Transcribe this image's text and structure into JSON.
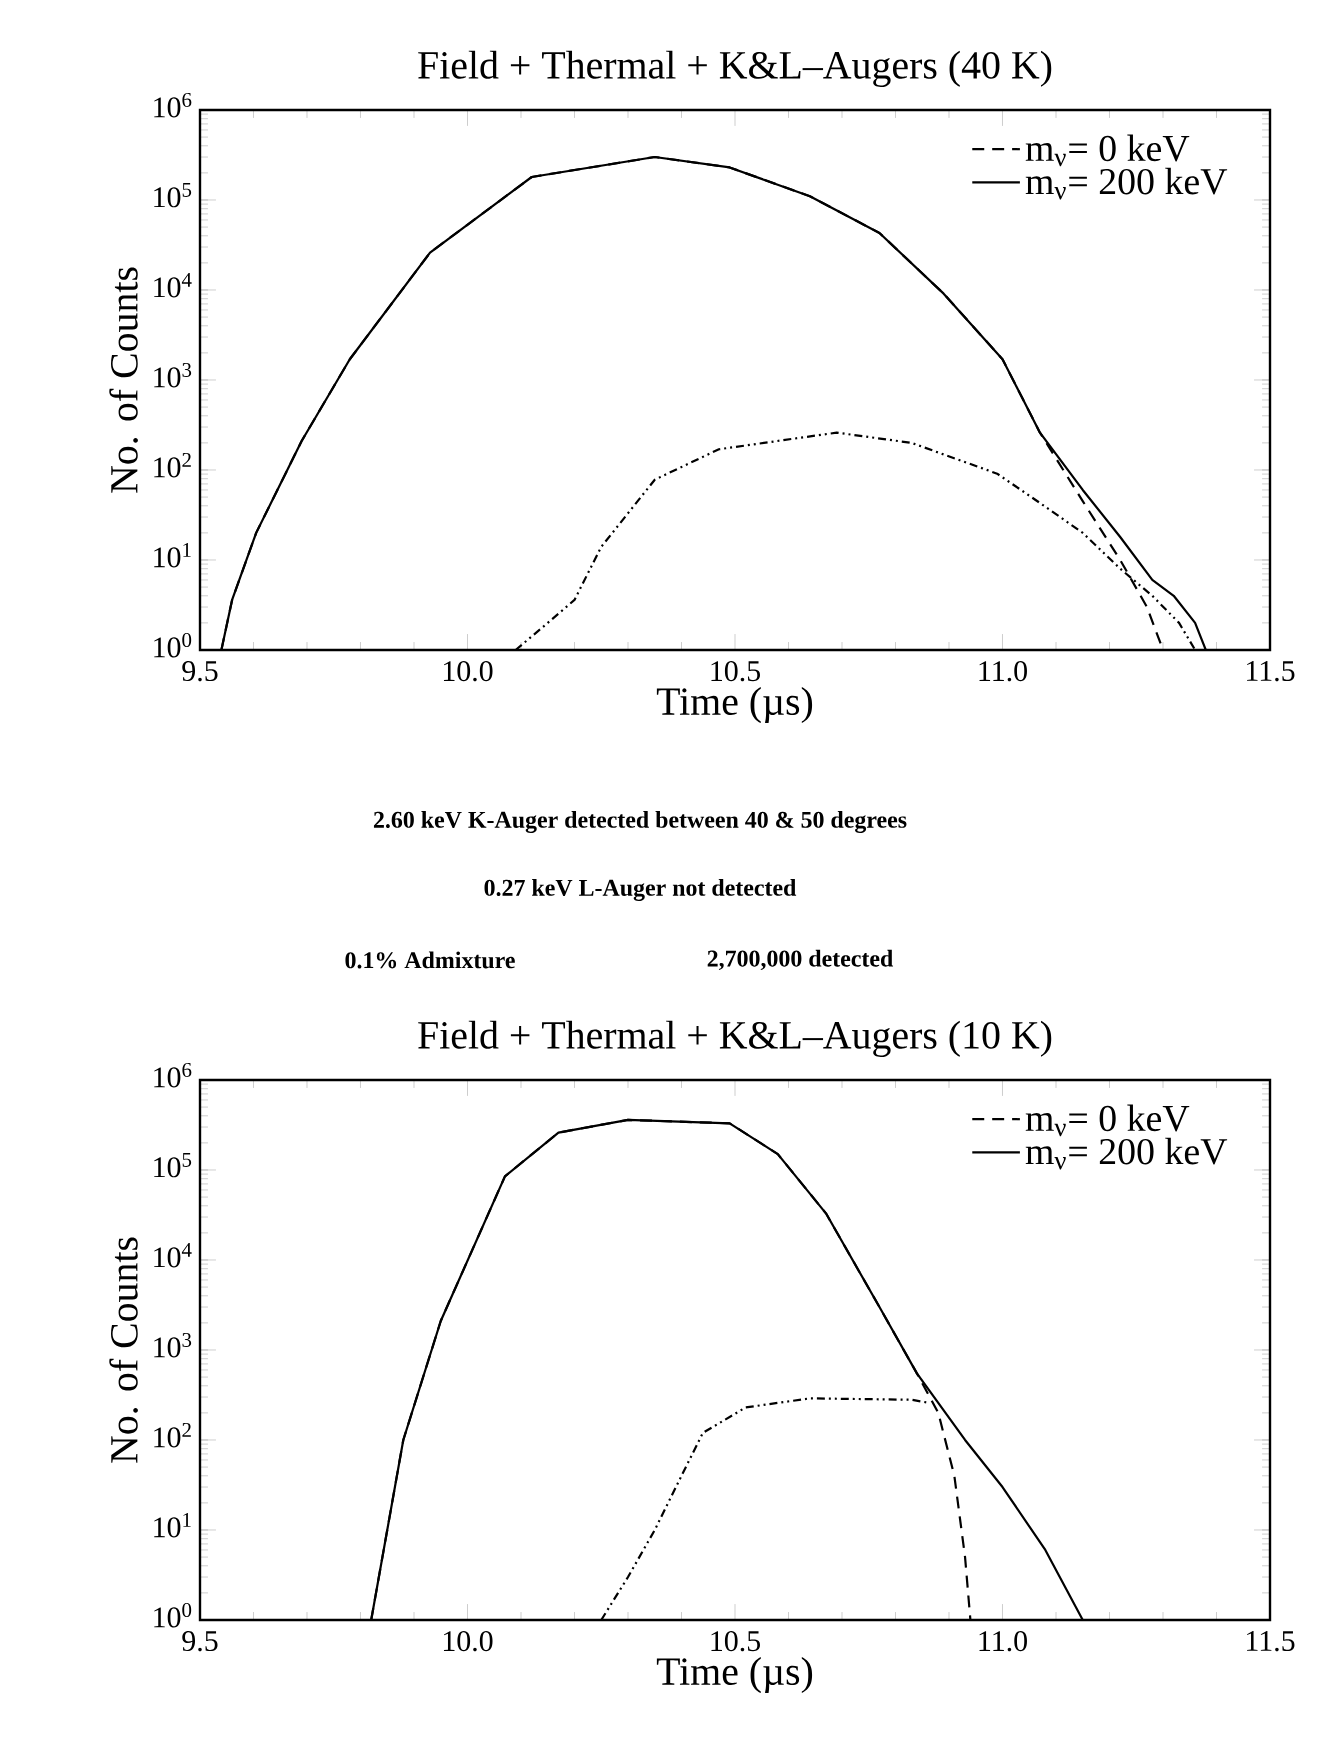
{
  "chart_data": [
    {
      "type": "line",
      "title": "Field + Thermal + K&L–Augers (40 K)",
      "xlabel": "Time (µs)",
      "ylabel": "No. of Counts",
      "log": "y",
      "xlim": [
        9.5,
        11.5
      ],
      "ylim": [
        1,
        1000000
      ],
      "xticks": [
        {
          "value": 9.5,
          "label": "9.5"
        },
        {
          "value": 10,
          "label": "10.0"
        },
        {
          "value": 10.5,
          "label": "10.5"
        },
        {
          "value": 11,
          "label": "11.0"
        },
        {
          "value": 11.5,
          "label": "11.5"
        }
      ],
      "yticks": [
        {
          "value": 1,
          "label": "10$^{0}$"
        },
        {
          "value": 10,
          "label": "10$^{1}$"
        },
        {
          "value": 100,
          "label": "10$^{2}$"
        },
        {
          "value": 1000,
          "label": "10$^{3}$"
        },
        {
          "value": 10000,
          "label": "10$^{4}$"
        },
        {
          "value": 100000,
          "label": "10$^{5}$"
        },
        {
          "value": 1000000,
          "label": "10$^{6}$"
        }
      ],
      "legend": "top right",
      "series": [
        {
          "name": "m$_{ν}$= 0 keV",
          "color": "#000000",
          "line_style": "dashed",
          "x": [
            9.54,
            9.56,
            9.605,
            9.69,
            9.78,
            9.93,
            10.12,
            10.35,
            10.49,
            10.64,
            10.77,
            10.89,
            11.0,
            11.07,
            11.15,
            11.22,
            11.27,
            11.3
          ],
          "values": [
            1,
            3.6,
            20,
            210,
            1700,
            26000,
            180000,
            300000,
            230000,
            110000,
            43000,
            9100,
            1700,
            260,
            45,
            10,
            3,
            1
          ]
        },
        {
          "name": "m$_{ν}$= 200 keV",
          "color": "#000000",
          "line_style": "solid",
          "x": [
            9.54,
            9.56,
            9.605,
            9.69,
            9.78,
            9.93,
            10.12,
            10.35,
            10.49,
            10.64,
            10.77,
            10.89,
            11.0,
            11.07,
            11.15,
            11.22,
            11.28,
            11.32,
            11.36,
            11.38
          ],
          "values": [
            1,
            3.6,
            20,
            210,
            1700,
            26000,
            180000,
            300000,
            230000,
            110000,
            43000,
            9100,
            1700,
            260,
            60,
            18,
            6,
            4,
            2,
            1
          ]
        },
        {
          "color": "#000000",
          "line_style": "dashdotted",
          "x": [
            10.09,
            10.15,
            10.2,
            10.25,
            10.35,
            10.47,
            10.69,
            10.83,
            10.99,
            11.07,
            11.15,
            11.22,
            11.28,
            11.33,
            11.36
          ],
          "values": [
            1,
            2,
            3.6,
            14,
            78,
            170,
            260,
            200,
            91,
            43,
            20,
            8,
            4,
            2,
            1
          ]
        }
      ],
      "annotations": [
        "2.60 keV K-Auger detected between 40 & 50 degrees",
        "0.27 keV L-Auger not detected",
        "0.1% Admixture",
        "2,700,000 detected"
      ]
    },
    {
      "type": "line",
      "title": "Field + Thermal + K&L–Augers (10 K)",
      "xlabel": "Time (µs)",
      "ylabel": "No. of Counts",
      "log": "y",
      "xlim": [
        9.5,
        11.5
      ],
      "ylim": [
        1,
        1000000
      ],
      "xticks": [
        {
          "value": 9.5,
          "label": "9.5"
        },
        {
          "value": 10,
          "label": "10.0"
        },
        {
          "value": 10.5,
          "label": "10.5"
        },
        {
          "value": 11,
          "label": "11.0"
        },
        {
          "value": 11.5,
          "label": "11.5"
        }
      ],
      "yticks": [
        {
          "value": 1,
          "label": "10$^{0}$"
        },
        {
          "value": 10,
          "label": "10$^{1}$"
        },
        {
          "value": 100,
          "label": "10$^{2}$"
        },
        {
          "value": 1000,
          "label": "10$^{3}$"
        },
        {
          "value": 10000,
          "label": "10$^{4}$"
        },
        {
          "value": 100000,
          "label": "10$^{5}$"
        },
        {
          "value": 1000000,
          "label": "10$^{6}$"
        }
      ],
      "legend": "top right",
      "series": [
        {
          "name": "m$_{ν}$= 0 keV",
          "color": "#000000",
          "line_style": "dashed",
          "x": [
            9.82,
            9.88,
            9.95,
            10.07,
            10.17,
            10.3,
            10.49,
            10.58,
            10.67,
            10.77,
            10.84,
            10.88,
            10.91,
            10.93,
            10.94
          ],
          "values": [
            1,
            100,
            2100,
            85000,
            260000,
            360000,
            330000,
            150000,
            33000,
            3000,
            550,
            200,
            40,
            5,
            1
          ]
        },
        {
          "name": "m$_{ν}$= 200 keV",
          "color": "#000000",
          "line_style": "solid",
          "x": [
            9.82,
            9.88,
            9.95,
            10.07,
            10.17,
            10.3,
            10.49,
            10.58,
            10.67,
            10.77,
            10.84,
            10.93,
            11.0,
            11.08,
            11.15
          ],
          "values": [
            1,
            100,
            2100,
            85000,
            260000,
            360000,
            330000,
            150000,
            33000,
            3000,
            550,
            100,
            30,
            6,
            1
          ]
        },
        {
          "color": "#000000",
          "line_style": "dashdotted",
          "x": [
            10.25,
            10.3,
            10.35,
            10.4,
            10.44,
            10.52,
            10.64,
            10.83,
            10.86
          ],
          "values": [
            1,
            3,
            10,
            40,
            120,
            230,
            290,
            280,
            260
          ]
        }
      ]
    }
  ]
}
